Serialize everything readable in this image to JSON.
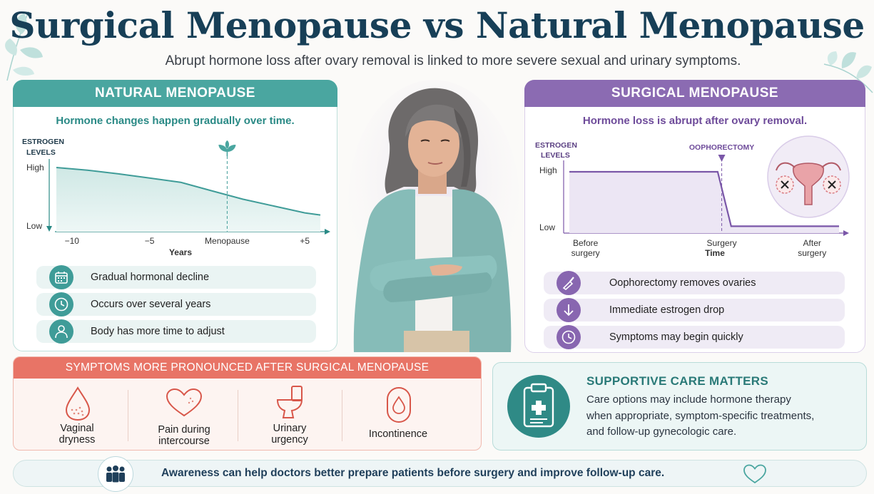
{
  "title": "Surgical Menopause vs Natural Menopause",
  "subtitle": "Abrupt hormone loss after ovary removal is linked to more severe sexual and urinary symptoms.",
  "natural": {
    "heading": "NATURAL MENOPAUSE",
    "tagline": "Hormone changes happen gradually over time.",
    "features": [
      {
        "icon": "calendar-icon",
        "label": "Gradual hormonal decline"
      },
      {
        "icon": "clock-icon",
        "label": "Occurs over several years"
      },
      {
        "icon": "person-icon",
        "label": "Body has more time to adjust"
      }
    ]
  },
  "surgical": {
    "heading": "SURGICAL MENOPAUSE",
    "tagline": "Hormone loss is abrupt after ovary removal.",
    "features": [
      {
        "icon": "scalpel-icon",
        "label": "Oophorectomy removes ovaries"
      },
      {
        "icon": "arrow-down-icon",
        "label": "Immediate estrogen drop"
      },
      {
        "icon": "clock-icon",
        "label": "Symptoms may begin quickly"
      }
    ]
  },
  "chart_data": [
    {
      "type": "line",
      "ylabel": "ESTROGEN LEVELS",
      "xlabel": "Years",
      "y_ticks": [
        "High",
        "Low"
      ],
      "x_ticks": [
        "−10",
        "−5",
        "Menopause",
        "+5"
      ],
      "x": [
        -11,
        -9,
        -7,
        -5,
        -3,
        -1,
        1,
        3,
        5,
        6
      ],
      "values": [
        1.0,
        0.95,
        0.88,
        0.8,
        0.72,
        0.56,
        0.4,
        0.27,
        0.14,
        0.1
      ],
      "marker": {
        "x": 0,
        "icon": "sprout-icon"
      },
      "color": "#4aa6a0"
    },
    {
      "type": "line",
      "ylabel": "ESTROGEN LEVELS",
      "xlabel": "Time",
      "y_ticks": [
        "High",
        "Low"
      ],
      "x_ticks": [
        "Before surgery",
        "Surgery",
        "After surgery"
      ],
      "annotation": "OOPHORECTOMY",
      "x": [
        0,
        0.55,
        0.6,
        1.0
      ],
      "values": [
        1.0,
        1.0,
        0.02,
        0.02
      ],
      "color": "#7a57a8"
    }
  ],
  "symptoms": {
    "heading": "SYMPTOMS MORE PRONOUNCED AFTER SURGICAL MENOPAUSE",
    "items": [
      {
        "icon": "drop-icon",
        "line1": "Vaginal",
        "line2": "dryness"
      },
      {
        "icon": "heart-icon",
        "line1": "Pain during",
        "line2": "intercourse"
      },
      {
        "icon": "toilet-icon",
        "line1": "Urinary",
        "line2": "urgency"
      },
      {
        "icon": "pad-icon",
        "line1": "Incontinence",
        "line2": ""
      }
    ]
  },
  "care": {
    "title": "SUPPORTIVE CARE MATTERS",
    "lines": [
      "Care options may include hormone therapy",
      "when appropriate, symptom-specific treatments,",
      "and follow-up gynecologic care."
    ]
  },
  "awareness": "Awareness can help doctors better prepare patients before surgery and improve follow-up care.",
  "colors": {
    "navy": "#173f57",
    "teal": "#4aa6a0",
    "purple": "#8b6bb2",
    "coral": "#e87466"
  }
}
